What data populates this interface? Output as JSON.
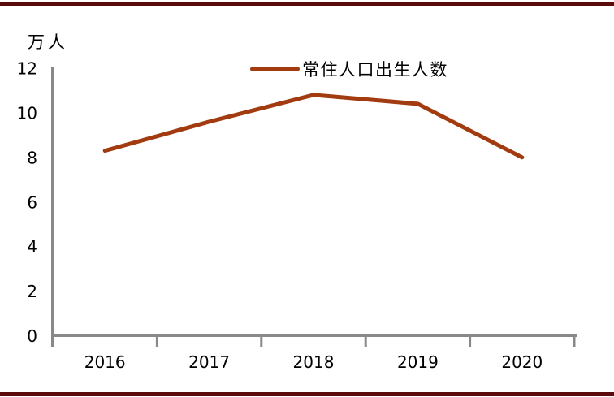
{
  "page": {
    "background_color": "#ffffff",
    "border_rule_color": "#5c0b0c"
  },
  "chart_data": {
    "type": "line",
    "title": "",
    "unit_label": "万人",
    "categories": [
      "2016",
      "2017",
      "2018",
      "2019",
      "2020"
    ],
    "series": [
      {
        "name": "常住人口出生人数",
        "values": [
          8.3,
          9.6,
          10.8,
          10.4,
          8.0
        ],
        "color": "#a23b10"
      }
    ],
    "ylim": [
      0,
      12
    ],
    "yticks": [
      0,
      2,
      4,
      6,
      8,
      10,
      12
    ],
    "grid": false,
    "legend_position": "top-center",
    "axis_color": "#898989",
    "text_color": "#000000"
  }
}
